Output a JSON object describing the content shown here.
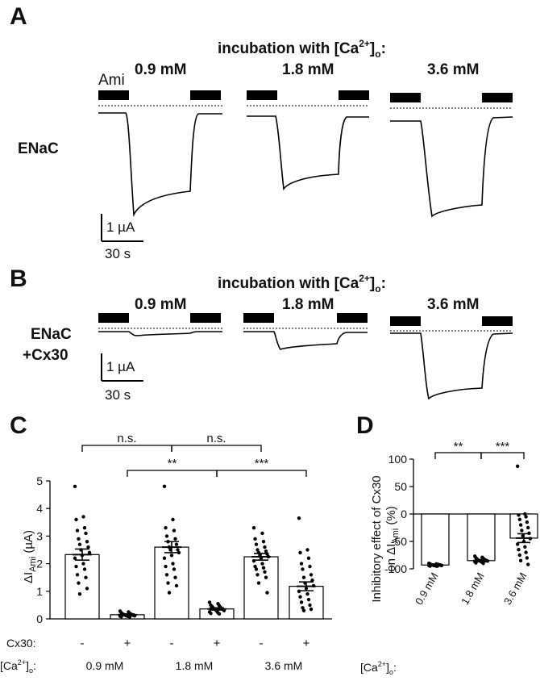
{
  "panel_a": {
    "letter": "A",
    "header": "incubation with [Ca",
    "header_sup": "2+",
    "header_tail": "]",
    "header_sub": "o",
    "header_colon": ":",
    "conc": [
      "0.9 mM",
      "1.8 mM",
      "3.6 mM"
    ],
    "ami": "Ami",
    "row_label": "ENaC",
    "scale_y": "1 µA",
    "scale_x": "30 s"
  },
  "panel_b": {
    "letter": "B",
    "header": "incubation with [Ca",
    "header_sup": "2+",
    "header_tail": "]",
    "header_sub": "o",
    "header_colon": ":",
    "conc": [
      "0.9 mM",
      "1.8 mM",
      "3.6 mM"
    ],
    "row_label_1": "ENaC",
    "row_label_2": "+Cx30",
    "scale_y": "1 µA",
    "scale_x": "30 s"
  },
  "chart_data": [
    {
      "panel": "C",
      "type": "bar",
      "ylabel": "ΔI",
      "ylabel_sub": "Ami",
      "ylabel_unit": " (µA)",
      "ylim": [
        0,
        5
      ],
      "yticks": [
        0,
        1,
        2,
        3,
        4,
        5
      ],
      "row1_label": "Cx30:",
      "row2_label": "[Ca",
      "row2_sup": "2+",
      "row2_tail": "]",
      "row2_sub": "o",
      "row2_colon": ":",
      "cx30_marks": [
        "-",
        "+",
        "-",
        "+",
        "-",
        "+"
      ],
      "groups": [
        "0.9 mM",
        "1.8 mM",
        "3.6 mM"
      ],
      "values": [
        2.33,
        0.15,
        2.6,
        0.36,
        2.25,
        1.18
      ],
      "sem": [
        0.2,
        0.03,
        0.2,
        0.04,
        0.12,
        0.16
      ],
      "points": [
        [
          4.8,
          3.7,
          3.6,
          3.3,
          3.2,
          3.1,
          2.9,
          2.8,
          2.7,
          2.6,
          2.5,
          2.4,
          2.3,
          2.2,
          2.0,
          1.9,
          1.8,
          1.6,
          1.5,
          1.3,
          1.1,
          0.9
        ],
        [
          0.28,
          0.25,
          0.22,
          0.2,
          0.18,
          0.17,
          0.16,
          0.15,
          0.14,
          0.13,
          0.12,
          0.11,
          0.1,
          0.1,
          0.09,
          0.08,
          0.07
        ],
        [
          4.8,
          3.6,
          3.3,
          3.2,
          3.0,
          2.9,
          2.8,
          2.7,
          2.6,
          2.5,
          2.5,
          2.4,
          2.3,
          2.2,
          2.0,
          1.9,
          1.8,
          1.6,
          1.5,
          1.3,
          1.2,
          0.95
        ],
        [
          0.6,
          0.55,
          0.5,
          0.48,
          0.45,
          0.42,
          0.4,
          0.38,
          0.36,
          0.35,
          0.33,
          0.3,
          0.28,
          0.25,
          0.22,
          0.2,
          0.18
        ],
        [
          3.3,
          3.1,
          2.9,
          2.8,
          2.7,
          2.6,
          2.5,
          2.45,
          2.4,
          2.35,
          2.3,
          2.25,
          2.2,
          2.1,
          2.0,
          1.9,
          1.85,
          1.8,
          1.7,
          1.6,
          1.5,
          1.3,
          0.95
        ],
        [
          3.65,
          2.5,
          2.4,
          2.2,
          2.0,
          1.9,
          1.8,
          1.6,
          1.5,
          1.4,
          1.3,
          1.2,
          1.1,
          1.0,
          0.9,
          0.8,
          0.7,
          0.6,
          0.5,
          0.4,
          0.35,
          0.3
        ]
      ],
      "brackets": [
        {
          "from": 0,
          "to": 2,
          "label": "n.s."
        },
        {
          "from": 2,
          "to": 4,
          "label": "n.s."
        },
        {
          "from": 1,
          "to": 3,
          "label": "**"
        },
        {
          "from": 3,
          "to": 5,
          "label": "***"
        }
      ]
    },
    {
      "panel": "D",
      "type": "bar",
      "ylabel_1": "Inhibitory effect of Cx30",
      "ylabel_2": "on ΔI",
      "ylabel_2_sub": "Ami",
      "ylabel_2_unit": " (%)",
      "ylim": [
        -100,
        100
      ],
      "yticks": [
        -100,
        -50,
        0,
        50,
        100
      ],
      "row_label": "[Ca",
      "row_sup": "2+",
      "row_tail": "]",
      "row_sub": "o",
      "row_colon": ":",
      "categories": [
        "0.9 mM",
        "1.8 mM",
        "3.6 mM"
      ],
      "values": [
        -93,
        -85,
        -44
      ],
      "sem": [
        1,
        2,
        8
      ],
      "points": [
        [
          -90,
          -91,
          -91,
          -92,
          -92,
          -92,
          -93,
          -93,
          -93,
          -93,
          -94,
          -94,
          -94,
          -94,
          -95,
          -95,
          -95
        ],
        [
          -77,
          -79,
          -80,
          -81,
          -82,
          -83,
          -84,
          -84,
          -85,
          -85,
          -86,
          -86,
          -87,
          -87,
          -88,
          -89,
          -90
        ],
        [
          87,
          0,
          -2,
          -5,
          -10,
          -15,
          -20,
          -25,
          -30,
          -35,
          -40,
          -45,
          -50,
          -55,
          -60,
          -65,
          -70,
          -75,
          -80,
          -85,
          -92
        ]
      ],
      "brackets": [
        {
          "from": 0,
          "to": 1,
          "label": "**"
        },
        {
          "from": 1,
          "to": 2,
          "label": "***"
        }
      ]
    }
  ]
}
